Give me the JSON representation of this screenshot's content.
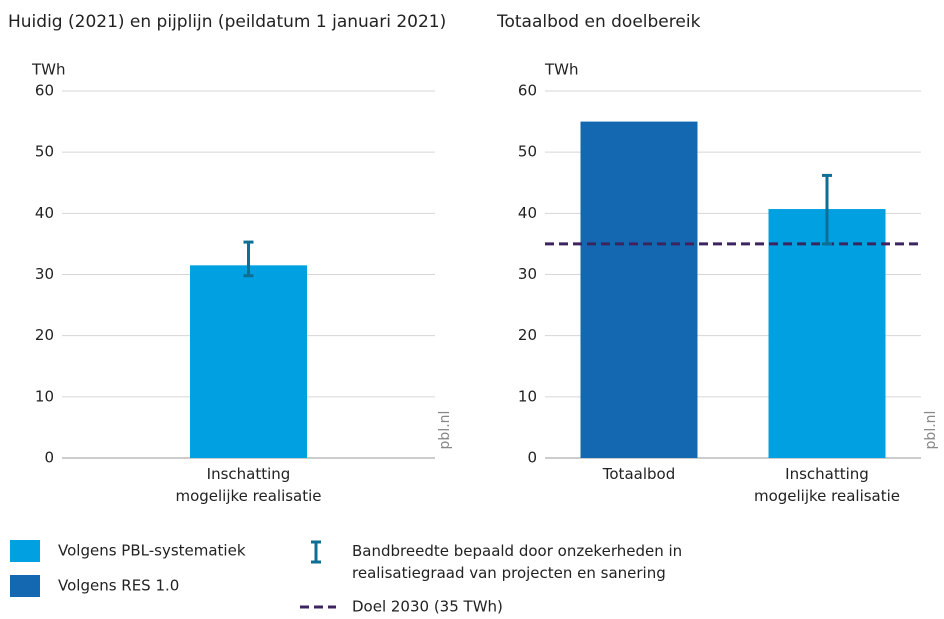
{
  "chart_data": [
    {
      "type": "bar",
      "title": "Huidig (2021) en pijplijn (peildatum 1 januari 2021)",
      "y_label": "TWh",
      "categories": [
        "Inschatting mogelijke realisatie"
      ],
      "values": [
        31.5
      ],
      "ranges": [
        [
          29.8,
          35.3
        ]
      ],
      "colors": [
        "#00a0e1"
      ],
      "ylim": [
        0,
        60
      ],
      "yticks": [
        0,
        10,
        20,
        30,
        40,
        50,
        60
      ],
      "grid": true
    },
    {
      "type": "bar",
      "title": "Totaalbod en doelbereik",
      "y_label": "TWh",
      "categories": [
        "Totaalbod",
        "Inschatting mogelijke realisatie"
      ],
      "values": [
        55,
        40.7
      ],
      "ranges": [
        null,
        [
          35,
          46.2
        ]
      ],
      "colors": [
        "#1368b1",
        "#00a0e1"
      ],
      "target": 35,
      "target_color": "#3b2460",
      "ylim": [
        0,
        60
      ],
      "yticks": [
        0,
        10,
        20,
        30,
        40,
        50,
        60
      ],
      "grid": true
    }
  ],
  "source": "pbl.nl",
  "error_color": "#0f6e96",
  "legend": {
    "items": [
      {
        "label": "Volgens PBL-systematiek",
        "color": "#00a0e1"
      },
      {
        "label": "Volgens RES 1.0",
        "color": "#1368b1"
      }
    ],
    "error_label": "Bandbreedte bepaald door onzekerheden in realisatiegraad van projecten en sanering",
    "target_label": "Doel 2030 (35 TWh)"
  }
}
